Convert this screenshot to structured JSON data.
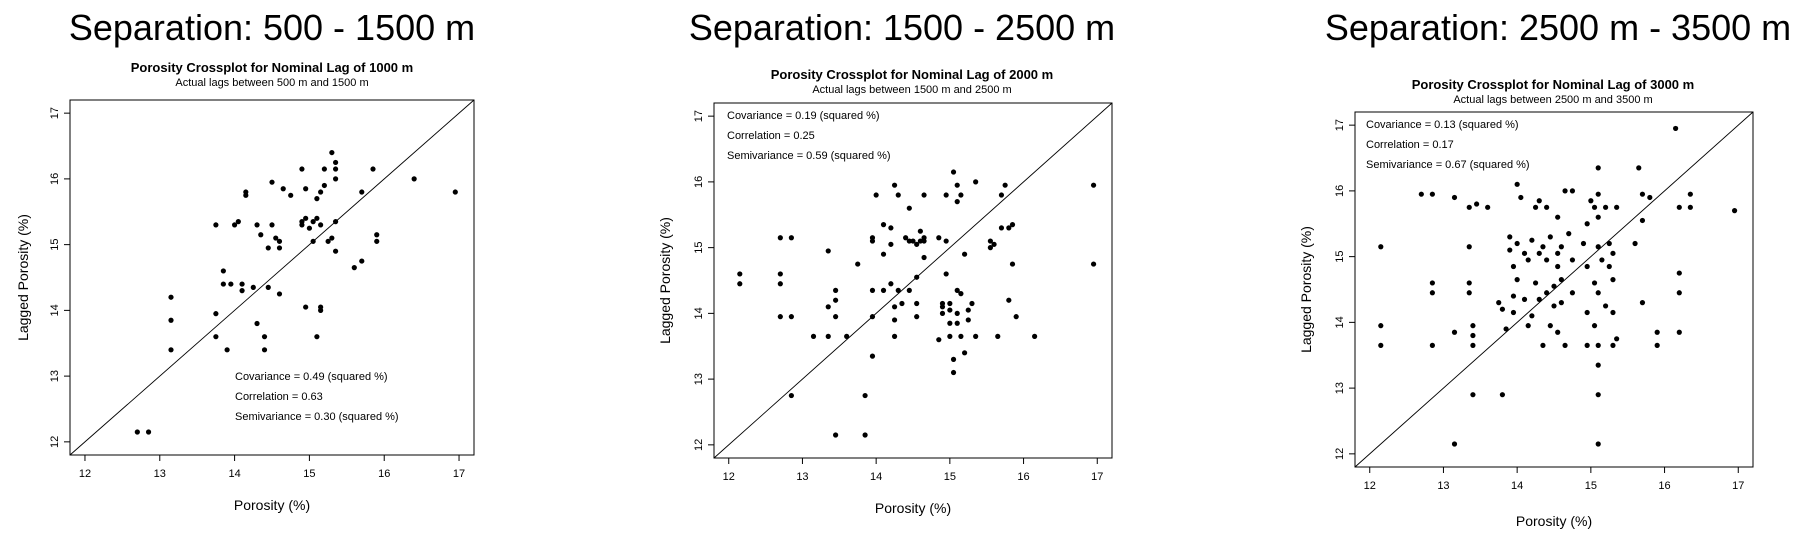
{
  "chart_data": [
    {
      "type": "scatter",
      "header": "Separation: 500 - 1500 m",
      "title": "Porosity Crossplot for Nominal Lag of 1000 m",
      "subtitle": "Actual lags between 500 m and 1500 m",
      "xlabel": "Porosity (%)",
      "ylabel": "Lagged Porosity (%)",
      "xlim": [
        11.8,
        17.2
      ],
      "ylim": [
        11.8,
        17.2
      ],
      "xticks": [
        "12",
        "13",
        "14",
        "15",
        "16",
        "17"
      ],
      "yticks": [
        "12",
        "13",
        "14",
        "15",
        "16",
        "17"
      ],
      "legend_position": "bottom-right",
      "stats": [
        "Covariance = 0.49 (squared %)",
        "Correlation = 0.63",
        "Semivariance = 0.30 (squared %)"
      ],
      "points": [
        [
          12.7,
          12.15
        ],
        [
          12.85,
          12.15
        ],
        [
          13.15,
          13.4
        ],
        [
          13.15,
          13.85
        ],
        [
          13.15,
          14.2
        ],
        [
          13.75,
          13.6
        ],
        [
          13.75,
          13.95
        ],
        [
          13.75,
          15.3
        ],
        [
          13.85,
          14.4
        ],
        [
          13.85,
          14.6
        ],
        [
          13.9,
          13.4
        ],
        [
          13.95,
          14.4
        ],
        [
          14.0,
          15.3
        ],
        [
          14.05,
          15.35
        ],
        [
          14.1,
          14.3
        ],
        [
          14.1,
          14.4
        ],
        [
          14.15,
          15.8
        ],
        [
          14.15,
          15.75
        ],
        [
          14.25,
          14.35
        ],
        [
          14.3,
          13.8
        ],
        [
          14.3,
          15.3
        ],
        [
          14.35,
          15.15
        ],
        [
          14.4,
          13.4
        ],
        [
          14.4,
          13.6
        ],
        [
          14.45,
          14.35
        ],
        [
          14.45,
          14.95
        ],
        [
          14.5,
          15.3
        ],
        [
          14.5,
          15.95
        ],
        [
          14.55,
          15.1
        ],
        [
          14.6,
          15.05
        ],
        [
          14.6,
          14.95
        ],
        [
          14.6,
          14.25
        ],
        [
          14.65,
          15.85
        ],
        [
          14.75,
          15.75
        ],
        [
          14.9,
          16.15
        ],
        [
          14.9,
          15.3
        ],
        [
          14.9,
          15.35
        ],
        [
          14.95,
          15.4
        ],
        [
          14.95,
          14.05
        ],
        [
          14.95,
          15.85
        ],
        [
          15.0,
          15.25
        ],
        [
          15.05,
          15.05
        ],
        [
          15.05,
          15.35
        ],
        [
          15.1,
          13.6
        ],
        [
          15.1,
          15.4
        ],
        [
          15.1,
          15.7
        ],
        [
          15.15,
          15.8
        ],
        [
          15.15,
          15.3
        ],
        [
          15.15,
          14.05
        ],
        [
          15.15,
          14.0
        ],
        [
          15.2,
          16.15
        ],
        [
          15.2,
          15.9
        ],
        [
          15.25,
          15.05
        ],
        [
          15.3,
          15.1
        ],
        [
          15.3,
          16.4
        ],
        [
          15.35,
          16.15
        ],
        [
          15.35,
          16.25
        ],
        [
          15.35,
          16.0
        ],
        [
          15.35,
          15.35
        ],
        [
          15.35,
          14.9
        ],
        [
          15.6,
          14.65
        ],
        [
          15.7,
          14.75
        ],
        [
          15.7,
          15.8
        ],
        [
          15.85,
          16.15
        ],
        [
          15.9,
          15.15
        ],
        [
          15.9,
          15.05
        ],
        [
          16.4,
          16.0
        ],
        [
          16.95,
          15.8
        ]
      ]
    },
    {
      "type": "scatter",
      "header": "Separation: 1500 - 2500 m",
      "title": "Porosity Crossplot for Nominal Lag of 2000 m",
      "subtitle": "Actual lags between 1500 m and 2500 m",
      "xlabel": "Porosity (%)",
      "ylabel": "Lagged Porosity (%)",
      "xlim": [
        11.8,
        17.2
      ],
      "ylim": [
        11.8,
        17.2
      ],
      "xticks": [
        "12",
        "13",
        "14",
        "15",
        "16",
        "17"
      ],
      "yticks": [
        "12",
        "13",
        "14",
        "15",
        "16",
        "17"
      ],
      "legend_position": "top-left",
      "stats": [
        "Covariance = 0.19 (squared %)",
        "Correlation = 0.25",
        "Semivariance = 0.59 (squared %)"
      ],
      "points": [
        [
          12.15,
          14.6
        ],
        [
          12.15,
          14.45
        ],
        [
          12.7,
          13.95
        ],
        [
          12.7,
          14.45
        ],
        [
          12.7,
          14.6
        ],
        [
          12.7,
          15.15
        ],
        [
          12.85,
          15.15
        ],
        [
          12.85,
          13.95
        ],
        [
          12.85,
          12.75
        ],
        [
          13.15,
          13.65
        ],
        [
          13.35,
          13.65
        ],
        [
          13.35,
          14.1
        ],
        [
          13.35,
          14.95
        ],
        [
          13.45,
          14.2
        ],
        [
          13.45,
          14.35
        ],
        [
          13.45,
          13.95
        ],
        [
          13.45,
          12.15
        ],
        [
          13.6,
          13.65
        ],
        [
          13.75,
          14.75
        ],
        [
          13.85,
          12.75
        ],
        [
          13.85,
          12.15
        ],
        [
          13.95,
          13.35
        ],
        [
          13.95,
          13.95
        ],
        [
          13.95,
          14.35
        ],
        [
          13.95,
          15.1
        ],
        [
          13.95,
          15.15
        ],
        [
          14.0,
          15.8
        ],
        [
          14.1,
          15.35
        ],
        [
          14.1,
          14.35
        ],
        [
          14.1,
          14.9
        ],
        [
          14.2,
          15.3
        ],
        [
          14.2,
          15.05
        ],
        [
          14.2,
          14.45
        ],
        [
          14.25,
          13.65
        ],
        [
          14.25,
          13.9
        ],
        [
          14.25,
          15.95
        ],
        [
          14.25,
          14.1
        ],
        [
          14.3,
          15.8
        ],
        [
          14.3,
          14.35
        ],
        [
          14.35,
          14.15
        ],
        [
          14.4,
          15.15
        ],
        [
          14.45,
          14.35
        ],
        [
          14.45,
          15.1
        ],
        [
          14.45,
          15.6
        ],
        [
          14.5,
          15.1
        ],
        [
          14.55,
          14.55
        ],
        [
          14.55,
          14.15
        ],
        [
          14.55,
          15.05
        ],
        [
          14.55,
          13.95
        ],
        [
          14.6,
          15.1
        ],
        [
          14.6,
          15.25
        ],
        [
          14.65,
          15.1
        ],
        [
          14.65,
          15.8
        ],
        [
          14.65,
          14.85
        ],
        [
          14.65,
          15.15
        ],
        [
          14.85,
          15.15
        ],
        [
          14.85,
          13.6
        ],
        [
          14.9,
          14.0
        ],
        [
          14.9,
          14.15
        ],
        [
          14.9,
          14.1
        ],
        [
          14.95,
          14.6
        ],
        [
          14.95,
          15.8
        ],
        [
          14.95,
          15.1
        ],
        [
          15.0,
          13.65
        ],
        [
          15.0,
          13.85
        ],
        [
          15.0,
          14.05
        ],
        [
          15.0,
          14.15
        ],
        [
          15.05,
          13.1
        ],
        [
          15.05,
          13.3
        ],
        [
          15.05,
          16.15
        ],
        [
          15.1,
          15.7
        ],
        [
          15.1,
          15.95
        ],
        [
          15.1,
          14.35
        ],
        [
          15.1,
          14.0
        ],
        [
          15.1,
          13.85
        ],
        [
          15.15,
          14.3
        ],
        [
          15.15,
          13.65
        ],
        [
          15.15,
          15.8
        ],
        [
          15.2,
          14.9
        ],
        [
          15.2,
          13.4
        ],
        [
          15.25,
          14.05
        ],
        [
          15.25,
          13.9
        ],
        [
          15.3,
          14.15
        ],
        [
          15.35,
          16.0
        ],
        [
          15.35,
          13.65
        ],
        [
          15.55,
          15.1
        ],
        [
          15.55,
          15.0
        ],
        [
          15.6,
          15.05
        ],
        [
          15.65,
          13.65
        ],
        [
          15.7,
          15.8
        ],
        [
          15.7,
          15.3
        ],
        [
          15.75,
          15.95
        ],
        [
          15.8,
          15.3
        ],
        [
          15.8,
          14.2
        ],
        [
          15.85,
          14.75
        ],
        [
          15.85,
          15.35
        ],
        [
          15.9,
          13.95
        ],
        [
          16.15,
          13.65
        ],
        [
          16.95,
          15.95
        ],
        [
          16.95,
          14.75
        ]
      ]
    },
    {
      "type": "scatter",
      "header": "Separation: 2500 m - 3500 m",
      "title": "Porosity Crossplot for Nominal Lag of 3000 m",
      "subtitle": "Actual lags between 2500 m and 3500 m",
      "xlabel": "Porosity (%)",
      "ylabel": "Lagged Porosity (%)",
      "xlim": [
        11.8,
        17.2
      ],
      "ylim": [
        11.8,
        17.2
      ],
      "xticks": [
        "12",
        "13",
        "14",
        "15",
        "16",
        "17"
      ],
      "yticks": [
        "12",
        "13",
        "14",
        "15",
        "16",
        "17"
      ],
      "legend_position": "top-left",
      "stats": [
        "Covariance = 0.13 (squared %)",
        "Correlation = 0.17",
        "Semivariance = 0.67 (squared %)"
      ],
      "points": [
        [
          12.15,
          15.15
        ],
        [
          12.15,
          13.95
        ],
        [
          12.15,
          13.65
        ],
        [
          12.7,
          15.95
        ],
        [
          12.85,
          15.95
        ],
        [
          12.85,
          14.6
        ],
        [
          12.85,
          14.45
        ],
        [
          12.85,
          13.65
        ],
        [
          13.15,
          15.9
        ],
        [
          13.15,
          13.85
        ],
        [
          13.15,
          12.15
        ],
        [
          13.35,
          15.75
        ],
        [
          13.35,
          15.15
        ],
        [
          13.35,
          14.6
        ],
        [
          13.35,
          14.45
        ],
        [
          13.4,
          13.95
        ],
        [
          13.4,
          13.8
        ],
        [
          13.4,
          13.65
        ],
        [
          13.4,
          12.9
        ],
        [
          13.45,
          15.8
        ],
        [
          13.6,
          15.75
        ],
        [
          13.75,
          14.3
        ],
        [
          13.8,
          14.2
        ],
        [
          13.8,
          12.9
        ],
        [
          13.85,
          13.9
        ],
        [
          13.9,
          15.3
        ],
        [
          13.9,
          15.1
        ],
        [
          13.95,
          14.85
        ],
        [
          13.95,
          14.4
        ],
        [
          13.95,
          14.15
        ],
        [
          14.0,
          16.1
        ],
        [
          14.0,
          15.2
        ],
        [
          14.0,
          14.65
        ],
        [
          14.05,
          15.9
        ],
        [
          14.1,
          15.05
        ],
        [
          14.1,
          14.35
        ],
        [
          14.15,
          14.95
        ],
        [
          14.15,
          13.95
        ],
        [
          14.2,
          15.25
        ],
        [
          14.2,
          14.1
        ],
        [
          14.25,
          15.75
        ],
        [
          14.25,
          14.6
        ],
        [
          14.3,
          15.85
        ],
        [
          14.3,
          15.05
        ],
        [
          14.3,
          14.35
        ],
        [
          14.35,
          15.15
        ],
        [
          14.35,
          13.65
        ],
        [
          14.4,
          15.75
        ],
        [
          14.4,
          14.95
        ],
        [
          14.4,
          14.45
        ],
        [
          14.45,
          15.3
        ],
        [
          14.45,
          13.95
        ],
        [
          14.5,
          14.55
        ],
        [
          14.5,
          14.25
        ],
        [
          14.55,
          15.05
        ],
        [
          14.55,
          14.85
        ],
        [
          14.55,
          13.85
        ],
        [
          14.55,
          15.6
        ],
        [
          14.6,
          15.15
        ],
        [
          14.6,
          14.65
        ],
        [
          14.6,
          14.3
        ],
        [
          14.65,
          13.65
        ],
        [
          14.65,
          16.0
        ],
        [
          14.7,
          15.35
        ],
        [
          14.75,
          14.95
        ],
        [
          14.75,
          14.45
        ],
        [
          14.75,
          16.0
        ],
        [
          14.9,
          15.2
        ],
        [
          14.95,
          15.5
        ],
        [
          14.95,
          14.85
        ],
        [
          14.95,
          14.15
        ],
        [
          14.95,
          13.65
        ],
        [
          15.0,
          15.85
        ],
        [
          15.05,
          15.75
        ],
        [
          15.05,
          14.6
        ],
        [
          15.05,
          13.95
        ],
        [
          15.1,
          16.35
        ],
        [
          15.1,
          15.95
        ],
        [
          15.1,
          15.6
        ],
        [
          15.1,
          15.15
        ],
        [
          15.1,
          14.45
        ],
        [
          15.1,
          13.65
        ],
        [
          15.1,
          13.35
        ],
        [
          15.1,
          12.9
        ],
        [
          15.1,
          12.15
        ],
        [
          15.15,
          14.95
        ],
        [
          15.2,
          14.25
        ],
        [
          15.2,
          15.75
        ],
        [
          15.25,
          15.2
        ],
        [
          15.25,
          14.85
        ],
        [
          15.3,
          15.05
        ],
        [
          15.3,
          14.65
        ],
        [
          15.3,
          14.15
        ],
        [
          15.3,
          13.65
        ],
        [
          15.35,
          15.75
        ],
        [
          15.35,
          13.75
        ],
        [
          15.6,
          15.2
        ],
        [
          15.65,
          16.35
        ],
        [
          15.7,
          14.3
        ],
        [
          15.7,
          15.95
        ],
        [
          15.7,
          15.55
        ],
        [
          15.8,
          15.9
        ],
        [
          15.9,
          13.85
        ],
        [
          15.9,
          13.65
        ],
        [
          16.15,
          16.95
        ],
        [
          16.2,
          15.75
        ],
        [
          16.2,
          14.75
        ],
        [
          16.2,
          14.45
        ],
        [
          16.2,
          13.85
        ],
        [
          16.35,
          15.75
        ],
        [
          16.35,
          15.95
        ],
        [
          16.95,
          15.7
        ]
      ]
    }
  ]
}
